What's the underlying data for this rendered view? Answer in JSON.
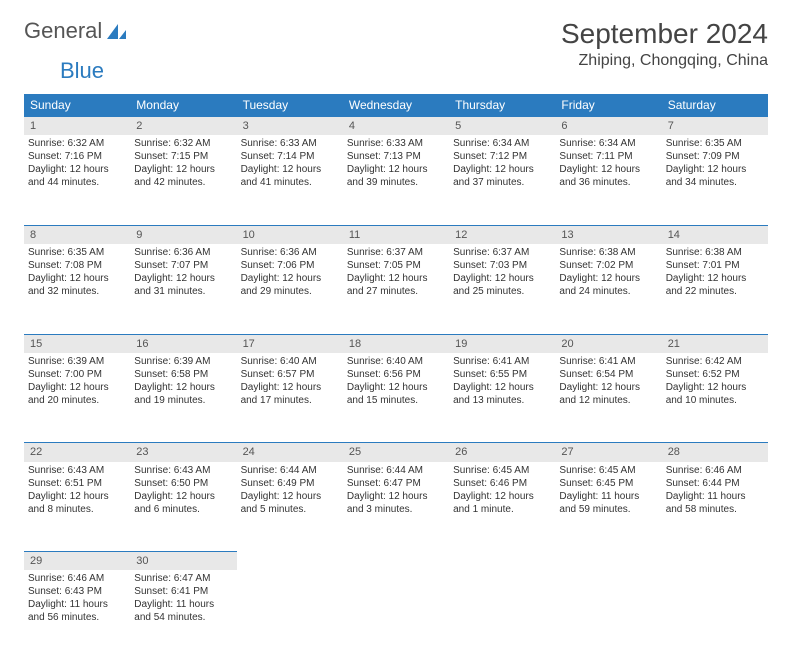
{
  "logo": {
    "text1": "General",
    "text2": "Blue"
  },
  "title": "September 2024",
  "location": "Zhiping, Chongqing, China",
  "colors": {
    "header_bg": "#2b7bbf",
    "header_text": "#ffffff",
    "daynum_bg": "#e8e8e8",
    "cell_text": "#333333",
    "page_bg": "#ffffff"
  },
  "typography": {
    "title_fontsize": 28,
    "location_fontsize": 16,
    "dayheader_fontsize": 12,
    "cell_fontsize": 10
  },
  "day_headers": [
    "Sunday",
    "Monday",
    "Tuesday",
    "Wednesday",
    "Thursday",
    "Friday",
    "Saturday"
  ],
  "weeks": [
    [
      {
        "n": "1",
        "sr": "Sunrise: 6:32 AM",
        "ss": "Sunset: 7:16 PM",
        "d1": "Daylight: 12 hours",
        "d2": "and 44 minutes."
      },
      {
        "n": "2",
        "sr": "Sunrise: 6:32 AM",
        "ss": "Sunset: 7:15 PM",
        "d1": "Daylight: 12 hours",
        "d2": "and 42 minutes."
      },
      {
        "n": "3",
        "sr": "Sunrise: 6:33 AM",
        "ss": "Sunset: 7:14 PM",
        "d1": "Daylight: 12 hours",
        "d2": "and 41 minutes."
      },
      {
        "n": "4",
        "sr": "Sunrise: 6:33 AM",
        "ss": "Sunset: 7:13 PM",
        "d1": "Daylight: 12 hours",
        "d2": "and 39 minutes."
      },
      {
        "n": "5",
        "sr": "Sunrise: 6:34 AM",
        "ss": "Sunset: 7:12 PM",
        "d1": "Daylight: 12 hours",
        "d2": "and 37 minutes."
      },
      {
        "n": "6",
        "sr": "Sunrise: 6:34 AM",
        "ss": "Sunset: 7:11 PM",
        "d1": "Daylight: 12 hours",
        "d2": "and 36 minutes."
      },
      {
        "n": "7",
        "sr": "Sunrise: 6:35 AM",
        "ss": "Sunset: 7:09 PM",
        "d1": "Daylight: 12 hours",
        "d2": "and 34 minutes."
      }
    ],
    [
      {
        "n": "8",
        "sr": "Sunrise: 6:35 AM",
        "ss": "Sunset: 7:08 PM",
        "d1": "Daylight: 12 hours",
        "d2": "and 32 minutes."
      },
      {
        "n": "9",
        "sr": "Sunrise: 6:36 AM",
        "ss": "Sunset: 7:07 PM",
        "d1": "Daylight: 12 hours",
        "d2": "and 31 minutes."
      },
      {
        "n": "10",
        "sr": "Sunrise: 6:36 AM",
        "ss": "Sunset: 7:06 PM",
        "d1": "Daylight: 12 hours",
        "d2": "and 29 minutes."
      },
      {
        "n": "11",
        "sr": "Sunrise: 6:37 AM",
        "ss": "Sunset: 7:05 PM",
        "d1": "Daylight: 12 hours",
        "d2": "and 27 minutes."
      },
      {
        "n": "12",
        "sr": "Sunrise: 6:37 AM",
        "ss": "Sunset: 7:03 PM",
        "d1": "Daylight: 12 hours",
        "d2": "and 25 minutes."
      },
      {
        "n": "13",
        "sr": "Sunrise: 6:38 AM",
        "ss": "Sunset: 7:02 PM",
        "d1": "Daylight: 12 hours",
        "d2": "and 24 minutes."
      },
      {
        "n": "14",
        "sr": "Sunrise: 6:38 AM",
        "ss": "Sunset: 7:01 PM",
        "d1": "Daylight: 12 hours",
        "d2": "and 22 minutes."
      }
    ],
    [
      {
        "n": "15",
        "sr": "Sunrise: 6:39 AM",
        "ss": "Sunset: 7:00 PM",
        "d1": "Daylight: 12 hours",
        "d2": "and 20 minutes."
      },
      {
        "n": "16",
        "sr": "Sunrise: 6:39 AM",
        "ss": "Sunset: 6:58 PM",
        "d1": "Daylight: 12 hours",
        "d2": "and 19 minutes."
      },
      {
        "n": "17",
        "sr": "Sunrise: 6:40 AM",
        "ss": "Sunset: 6:57 PM",
        "d1": "Daylight: 12 hours",
        "d2": "and 17 minutes."
      },
      {
        "n": "18",
        "sr": "Sunrise: 6:40 AM",
        "ss": "Sunset: 6:56 PM",
        "d1": "Daylight: 12 hours",
        "d2": "and 15 minutes."
      },
      {
        "n": "19",
        "sr": "Sunrise: 6:41 AM",
        "ss": "Sunset: 6:55 PM",
        "d1": "Daylight: 12 hours",
        "d2": "and 13 minutes."
      },
      {
        "n": "20",
        "sr": "Sunrise: 6:41 AM",
        "ss": "Sunset: 6:54 PM",
        "d1": "Daylight: 12 hours",
        "d2": "and 12 minutes."
      },
      {
        "n": "21",
        "sr": "Sunrise: 6:42 AM",
        "ss": "Sunset: 6:52 PM",
        "d1": "Daylight: 12 hours",
        "d2": "and 10 minutes."
      }
    ],
    [
      {
        "n": "22",
        "sr": "Sunrise: 6:43 AM",
        "ss": "Sunset: 6:51 PM",
        "d1": "Daylight: 12 hours",
        "d2": "and 8 minutes."
      },
      {
        "n": "23",
        "sr": "Sunrise: 6:43 AM",
        "ss": "Sunset: 6:50 PM",
        "d1": "Daylight: 12 hours",
        "d2": "and 6 minutes."
      },
      {
        "n": "24",
        "sr": "Sunrise: 6:44 AM",
        "ss": "Sunset: 6:49 PM",
        "d1": "Daylight: 12 hours",
        "d2": "and 5 minutes."
      },
      {
        "n": "25",
        "sr": "Sunrise: 6:44 AM",
        "ss": "Sunset: 6:47 PM",
        "d1": "Daylight: 12 hours",
        "d2": "and 3 minutes."
      },
      {
        "n": "26",
        "sr": "Sunrise: 6:45 AM",
        "ss": "Sunset: 6:46 PM",
        "d1": "Daylight: 12 hours",
        "d2": "and 1 minute."
      },
      {
        "n": "27",
        "sr": "Sunrise: 6:45 AM",
        "ss": "Sunset: 6:45 PM",
        "d1": "Daylight: 11 hours",
        "d2": "and 59 minutes."
      },
      {
        "n": "28",
        "sr": "Sunrise: 6:46 AM",
        "ss": "Sunset: 6:44 PM",
        "d1": "Daylight: 11 hours",
        "d2": "and 58 minutes."
      }
    ],
    [
      {
        "n": "29",
        "sr": "Sunrise: 6:46 AM",
        "ss": "Sunset: 6:43 PM",
        "d1": "Daylight: 11 hours",
        "d2": "and 56 minutes."
      },
      {
        "n": "30",
        "sr": "Sunrise: 6:47 AM",
        "ss": "Sunset: 6:41 PM",
        "d1": "Daylight: 11 hours",
        "d2": "and 54 minutes."
      },
      null,
      null,
      null,
      null,
      null
    ]
  ]
}
